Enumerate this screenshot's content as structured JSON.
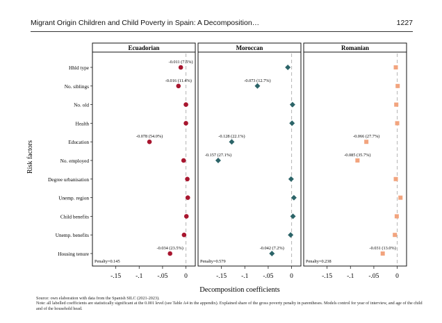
{
  "header": {
    "title": "Migrant Origin Children and Child Poverty in Spain: A Decomposition…",
    "page_number": "1227"
  },
  "notes": {
    "source": "Source: own elaboration with data from the Spanish SILC (2021-2023).",
    "note": "Note: all labelled coefficients are statistically significant at the 0.001 level (see Table A4 in the appendix). Explained share of the gross poverty penalty in parentheses. Models control for year of interview, and age of the child and of the household head."
  },
  "chart_data": {
    "type": "scatter",
    "xlabel": "Decomposition coefficients",
    "ylabel": "Risk factors",
    "xlim": [
      -0.2,
      0.02
    ],
    "xticks": [
      -0.15,
      -0.1,
      -0.05,
      0
    ],
    "xtick_labels": [
      "-.15",
      "-.1",
      "-.05",
      "0"
    ],
    "categories": [
      "Hhld type",
      "No. siblings",
      "No. old",
      "Health",
      "Education",
      "No. employed",
      "Degree urbanisation",
      "Unemp. region",
      "Child benefits",
      "Unemp. benefits",
      "Housing tenure"
    ],
    "panels": [
      {
        "name": "Ecuadorian",
        "color": "#a8162f",
        "marker": "circle",
        "penalty": "Penalty=0.145",
        "values": [
          -0.011,
          -0.016,
          0.0,
          0.0,
          -0.078,
          -0.005,
          0.003,
          0.004,
          0.001,
          -0.004,
          -0.034
        ],
        "labels": [
          "-0.011 (7.5%)",
          "-0.016 (11.4%)",
          "",
          "",
          "-0.078 (54.0%)",
          "",
          "",
          "",
          "",
          "",
          "-0.034 (23.5%)"
        ]
      },
      {
        "name": "Moroccan",
        "color": "#2c6468",
        "marker": "diamond",
        "penalty": "Penalty=0.579",
        "values": [
          -0.008,
          -0.073,
          0.002,
          0.001,
          -0.128,
          -0.157,
          -0.001,
          0.005,
          0.003,
          -0.002,
          -0.042
        ],
        "labels": [
          "",
          "-0.073 (12.7%)",
          "",
          "",
          "-0.128 (22.1%)",
          "-0.157 (27.1%)",
          "",
          "",
          "",
          "",
          "-0.042 (7.2%)"
        ]
      },
      {
        "name": "Romanian",
        "color": "#f2a47e",
        "marker": "square",
        "penalty": "Penalty=0.238",
        "values": [
          -0.003,
          0.001,
          -0.002,
          0.0,
          -0.066,
          -0.085,
          -0.003,
          0.007,
          -0.001,
          -0.005,
          -0.031
        ],
        "labels": [
          "",
          "",
          "",
          "",
          "-0.066 (27.7%)",
          "-0.085 (35.7%)",
          "",
          "",
          "",
          "",
          "-0.031 (13.0%)"
        ]
      }
    ]
  }
}
